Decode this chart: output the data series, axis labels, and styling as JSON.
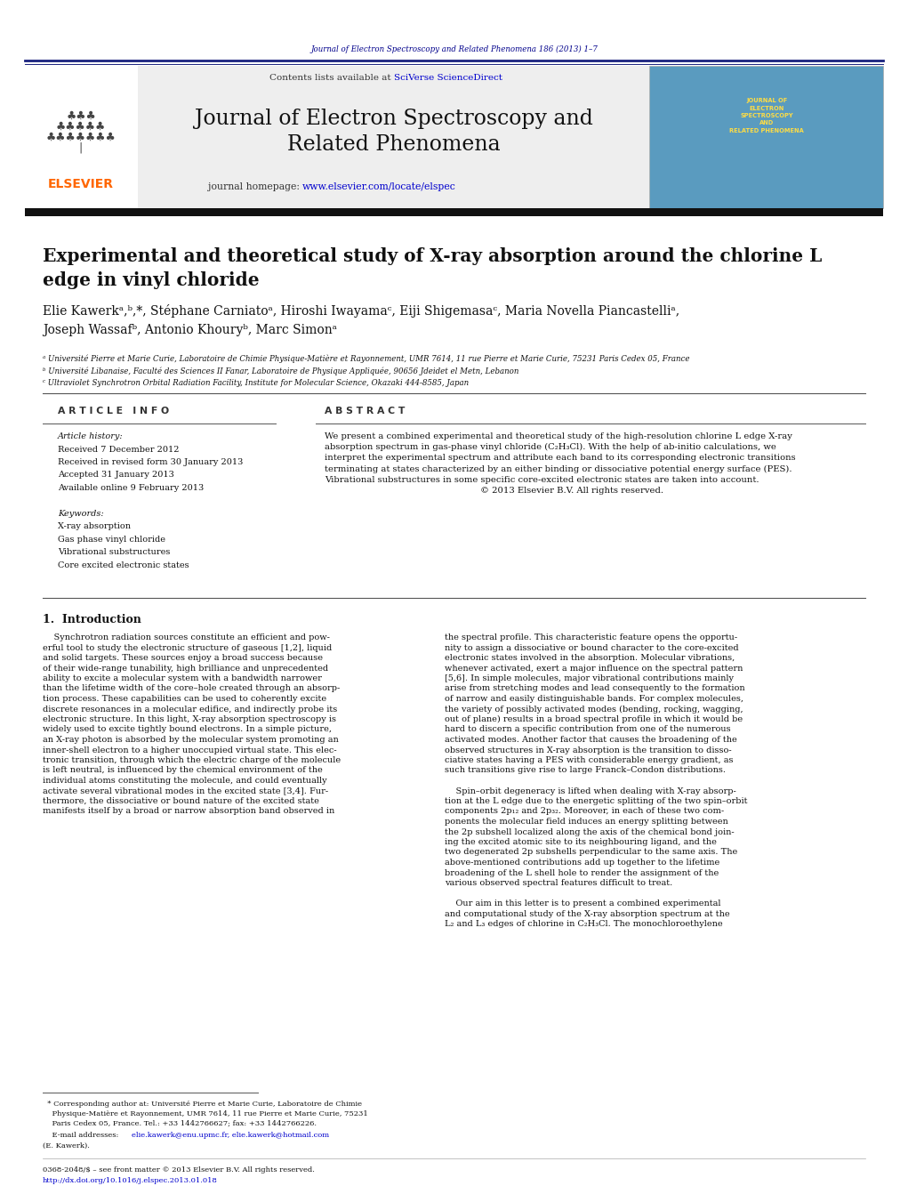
{
  "page_width": 10.21,
  "page_height": 13.51,
  "bg_color": "#ffffff",
  "top_journal_line": "Journal of Electron Spectroscopy and Related Phenomena 186 (2013) 1–7",
  "top_journal_color": "#00008B",
  "journal_title": "Journal of Electron Spectroscopy and\nRelated Phenomena",
  "paper_title": "Experimental and theoretical study of X-ray absorption around the chlorine L\nedge in vinyl chloride",
  "authors_line1": "Elie Kawerkᵃ,ᵇ,*, Stéphane Carniatoᵃ, Hiroshi Iwayamaᶜ, Eiji Shigemasaᶜ, Maria Novella Piancastelliᵃ,",
  "authors_line2": "Joseph Wassafᵇ, Antonio Khouryᵇ, Marc Simonᵃ",
  "affil_a": "ᵃ Université Pierre et Marie Curie, Laboratoire de Chimie Physique-Matière et Rayonnement, UMR 7614, 11 rue Pierre et Marie Curie, 75231 Paris Cedex 05, France",
  "affil_b": "ᵇ Université Libanaise, Faculté des Sciences II Fanar, Laboratoire de Physique Appliquée, 90656 Jdeidet el Metn, Lebanon",
  "affil_c": "ᶜ Ultraviolet Synchrotron Orbital Radiation Facility, Institute for Molecular Science, Okazaki 444-8585, Japan",
  "article_info_header": "A R T I C L E   I N F O",
  "abstract_header": "A B S T R A C T",
  "article_history_label": "Article history:",
  "received1": "Received 7 December 2012",
  "received2": "Received in revised form 30 January 2013",
  "accepted": "Accepted 31 January 2013",
  "available": "Available online 9 February 2013",
  "keywords_label": "Keywords:",
  "keyword1": "X-ray absorption",
  "keyword2": "Gas phase vinyl chloride",
  "keyword3": "Vibrational substructures",
  "keyword4": "Core excited electronic states",
  "abstract_text": "We present a combined experimental and theoretical study of the high-resolution chlorine L edge X-ray\nabsorption spectrum in gas-phase vinyl chloride (C₂H₃Cl). With the help of ab-initio calculations, we\ninterpret the experimental spectrum and attribute each band to its corresponding electronic transitions\nterminating at states characterized by an either binding or dissociative potential energy surface (PES).\nVibrational substructures in some specific core-excited electronic states are taken into account.\n                                                        © 2013 Elsevier B.V. All rights reserved.",
  "section1_title": "1.  Introduction",
  "intro_col1_lines": [
    "    Synchrotron radiation sources constitute an efficient and pow-",
    "erful tool to study the electronic structure of gaseous [1,2], liquid",
    "and solid targets. These sources enjoy a broad success because",
    "of their wide-range tunability, high brilliance and unprecedented",
    "ability to excite a molecular system with a bandwidth narrower",
    "than the lifetime width of the core–hole created through an absorp-",
    "tion process. These capabilities can be used to coherently excite",
    "discrete resonances in a molecular edifice, and indirectly probe its",
    "electronic structure. In this light, X-ray absorption spectroscopy is",
    "widely used to excite tightly bound electrons. In a simple picture,",
    "an X-ray photon is absorbed by the molecular system promoting an",
    "inner-shell electron to a higher unoccupied virtual state. This elec-",
    "tronic transition, through which the electric charge of the molecule",
    "is left neutral, is influenced by the chemical environment of the",
    "individual atoms constituting the molecule, and could eventually",
    "activate several vibrational modes in the excited state [3,4]. Fur-",
    "thermore, the dissociative or bound nature of the excited state",
    "manifests itself by a broad or narrow absorption band observed in"
  ],
  "intro_col2_lines": [
    "the spectral profile. This characteristic feature opens the opportu-",
    "nity to assign a dissociative or bound character to the core-excited",
    "electronic states involved in the absorption. Molecular vibrations,",
    "whenever activated, exert a major influence on the spectral pattern",
    "[5,6]. In simple molecules, major vibrational contributions mainly",
    "arise from stretching modes and lead consequently to the formation",
    "of narrow and easily distinguishable bands. For complex molecules,",
    "the variety of possibly activated modes (bending, rocking, wagging,",
    "out of plane) results in a broad spectral profile in which it would be",
    "hard to discern a specific contribution from one of the numerous",
    "activated modes. Another factor that causes the broadening of the",
    "observed structures in X-ray absorption is the transition to disso-",
    "ciative states having a PES with considerable energy gradient, as",
    "such transitions give rise to large Franck–Condon distributions.",
    "",
    "    Spin–orbit degeneracy is lifted when dealing with X-ray absorp-",
    "tion at the L edge due to the energetic splitting of the two spin–orbit",
    "components 2p₁₂ and 2p₃₂. Moreover, in each of these two com-",
    "ponents the molecular field induces an energy splitting between",
    "the 2p subshell localized along the axis of the chemical bond join-",
    "ing the excited atomic site to its neighbouring ligand, and the",
    "two degenerated 2p subshells perpendicular to the same axis. The",
    "above-mentioned contributions add up together to the lifetime",
    "broadening of the L shell hole to render the assignment of the",
    "various observed spectral features difficult to treat.",
    "",
    "    Our aim in this letter is to present a combined experimental",
    "and computational study of the X-ray absorption spectrum at the",
    "L₂ and L₃ edges of chlorine in C₂H₃Cl. The monochloroethylene"
  ],
  "footnote_star": "  * Corresponding author at: Université Pierre et Marie Curie, Laboratoire de Chimie\n    Physique-Matière et Rayonnement, UMR 7614, 11 rue Pierre et Marie Curie, 75231\n    Paris Cedex 05, France. Tel.: +33 1442766627; fax: +33 1442766226.",
  "footnote_email_label": "    E-mail addresses:",
  "footnote_email_link": "elie.kawerk@enu.upmc.fr, elie.kawerk@hotmail.com",
  "footnote_email_end": "\n    (E. Kawerk).",
  "footnote_bottom1": "0368-2048/$ – see front matter © 2013 Elsevier B.V. All rights reserved.",
  "footnote_bottom2": "http://dx.doi.org/10.1016/j.elspec.2013.01.018",
  "elsevier_color": "#FF6600",
  "link_color": "#0000CD",
  "dark_blue": "#00008B"
}
